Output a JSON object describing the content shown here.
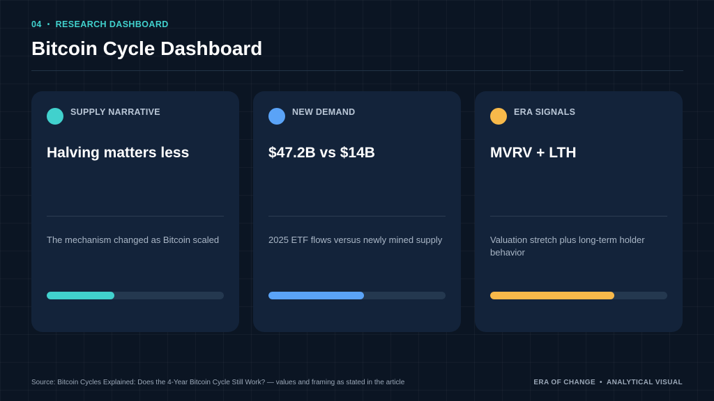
{
  "header": {
    "slide_number": "04",
    "separator": "•",
    "section_label": "RESEARCH DASHBOARD",
    "title": "Bitcoin Cycle Dashboard"
  },
  "cards": [
    {
      "label": "SUPPLY NARRATIVE",
      "headline": "Halving matters less",
      "description": "The mechanism changed as Bitcoin scaled",
      "accent": "#41d1cd",
      "icon": "circle-dot-icon",
      "progress": 0.38
    },
    {
      "label": "NEW DEMAND",
      "headline": "$47.2B vs $14B",
      "description": "2025 ETF flows versus newly mined supply",
      "accent": "#5aa3f7",
      "icon": "circle-dot-icon",
      "progress": 0.54
    },
    {
      "label": "ERA SIGNALS",
      "headline": "MVRV + LTH",
      "description": "Valuation stretch plus long-term holder behavior",
      "accent": "#f8b94a",
      "icon": "circle-dot-icon",
      "progress": 0.7
    }
  ],
  "footer": {
    "source": "Source: Bitcoin Cycles Explained: Does the 4-Year Bitcoin Cycle Still Work? — values and framing as stated in the article",
    "brand_left": "ERA OF CHANGE",
    "brand_sep": "•",
    "brand_right": "ANALYTICAL VISUAL"
  }
}
